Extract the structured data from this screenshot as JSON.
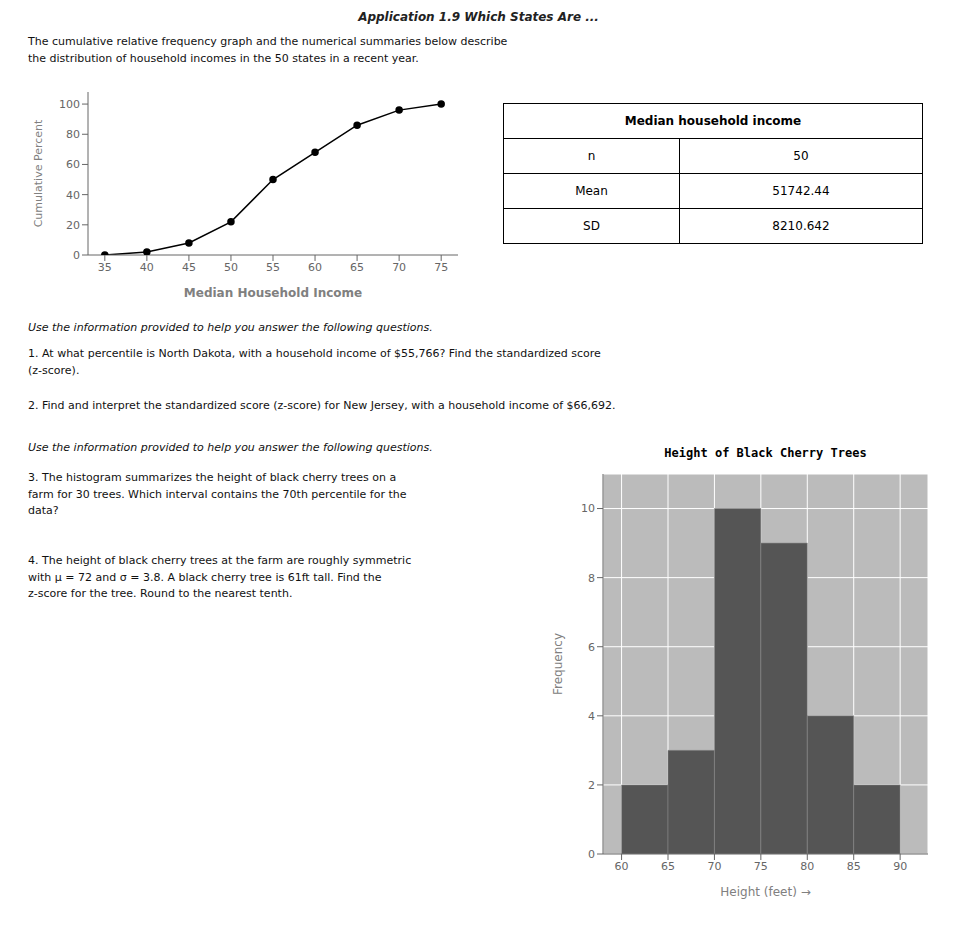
{
  "chart_data": [
    {
      "type": "line",
      "annotations": [
        "Application 1.9 Which States Are ...",
        "The cumulative relative frequency graph and the numerical summaries below describe\nthe distribution of household incomes in the 50 states in a recent year.",
        "Use the information provided to help you answer the following questions.",
        "1. At what percentile is North Dakota, with a household income of $55,766? Find the standardized score\n(z-score).",
        "2. Find and interpret the standardized score (z-score) for New Jersey, with a household income of $66,692."
      ],
      "x": [
        35,
        40,
        45,
        50,
        55,
        60,
        65,
        70,
        75
      ],
      "values": [
        0,
        2,
        8,
        22,
        50,
        68,
        86,
        96,
        100
      ],
      "xlabel": "Median Household Income",
      "ylabel": "Cumulative Percent",
      "xlim": [
        33,
        77
      ],
      "ylim": [
        0,
        108
      ],
      "xticks": [
        35,
        40,
        45,
        50,
        55,
        60,
        65,
        70,
        75
      ],
      "yticks": [
        0,
        20,
        40,
        60,
        80,
        100
      ],
      "color": "black",
      "marker": "circle",
      "grid": false
    },
    {
      "type": "table",
      "title": "Median household income",
      "categories": [
        "n",
        "Mean",
        "SD"
      ],
      "values": [
        50,
        51742.44,
        8210.642
      ]
    },
    {
      "type": "histogram",
      "title": "Height of Black Cherry Trees",
      "annotations": [
        "Use the information provided to help you answer the following questions.",
        "3. The histogram summarizes the height of black cherry trees on a\nfarm for 30 trees. Which interval contains the 70th percentile for the\ndata?",
        "4. The height of black cherry trees at the farm are roughly symmetric\nwith μ = 72 and σ = 3.8. A black cherry tree is 61ft tall. Find the\nz-score for the tree. Round to the nearest tenth."
      ],
      "bins": [
        60,
        65,
        70,
        75,
        80,
        85,
        90
      ],
      "values": [
        2,
        3,
        10,
        9,
        4,
        2
      ],
      "color": "#555555",
      "xlabel": "Height (feet)  →",
      "ylabel": "Frequency",
      "xlim": [
        58,
        93
      ],
      "ylim": [
        0,
        11
      ],
      "xticks": [
        60,
        65,
        70,
        75,
        80,
        85,
        90
      ],
      "yticks": [
        0,
        2,
        4,
        6,
        8,
        10
      ],
      "grid": true
    }
  ]
}
